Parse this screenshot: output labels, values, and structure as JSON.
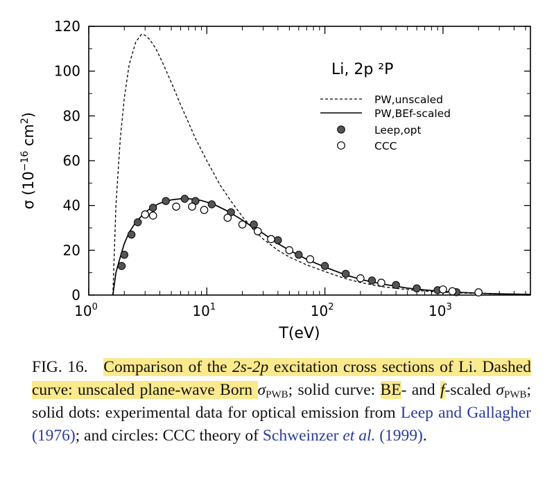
{
  "chart_data": {
    "type": "scatter",
    "xscale": "log",
    "xlim": [
      1,
      5500
    ],
    "ylim": [
      0,
      120
    ],
    "xlabel": "T(eV)",
    "ylabel": "σ (10⁻¹⁶ cm²)",
    "ylabel_base": "σ (10",
    "ylabel_exp1": "−16",
    "ylabel_mid": " cm",
    "ylabel_exp2": "2",
    "ylabel_end": ")",
    "panel_label": "Li, 2p ²P",
    "xticks": [
      {
        "value": 1,
        "base": "10",
        "exp": "0"
      },
      {
        "value": 10,
        "base": "10",
        "exp": "1"
      },
      {
        "value": 100,
        "base": "10",
        "exp": "2"
      },
      {
        "value": 1000,
        "base": "10",
        "exp": "3"
      }
    ],
    "yticks": [
      0,
      20,
      40,
      60,
      80,
      100,
      120
    ],
    "legend_placement": "upper-right",
    "series": [
      {
        "name": "PW,unscaled",
        "style": "dashed-line",
        "x": [
          1.6,
          1.7,
          1.85,
          2.0,
          2.2,
          2.5,
          2.8,
          3.0,
          3.3,
          3.7,
          4.2,
          5,
          6,
          7,
          8,
          10,
          13,
          16,
          20,
          25,
          30,
          40,
          50,
          70,
          100,
          150,
          200,
          300,
          500,
          700,
          1000,
          1500,
          2000,
          3000,
          5500
        ],
        "y": [
          0,
          40,
          70,
          88,
          103,
          113,
          116.5,
          116,
          114,
          110,
          104,
          95,
          85,
          77,
          70,
          60,
          49,
          42,
          35,
          29,
          25,
          20,
          17,
          13.5,
          10.5,
          7.3,
          5.6,
          3.8,
          2.4,
          1.8,
          1.3,
          0.9,
          0.7,
          0.45,
          0.3
        ]
      },
      {
        "name": "PW,BEf-scaled",
        "style": "solid-line",
        "x": [
          1.6,
          1.7,
          1.85,
          2.0,
          2.2,
          2.5,
          3.0,
          3.5,
          4.0,
          5,
          6,
          7,
          8,
          9,
          10,
          12,
          15,
          20,
          25,
          30,
          40,
          50,
          70,
          100,
          150,
          200,
          300,
          500,
          700,
          1000,
          1500,
          2000,
          3000,
          5500
        ],
        "y": [
          0,
          10,
          17,
          23,
          28,
          32.5,
          37,
          39.5,
          41,
          42.5,
          43,
          43,
          42.7,
          42.2,
          41.5,
          40,
          37.5,
          33.5,
          30,
          27.5,
          23,
          20,
          16,
          12.5,
          9,
          7,
          5,
          3.1,
          2.3,
          1.6,
          1.1,
          0.85,
          0.55,
          0.3
        ]
      },
      {
        "name": "Leep,opt",
        "style": "filled-circle",
        "x": [
          1.9,
          2.0,
          2.3,
          2.6,
          3.0,
          3.5,
          4.5,
          6.5,
          8.0,
          11,
          16,
          25,
          40,
          60,
          100,
          150,
          250,
          400,
          600,
          900,
          1300
        ],
        "y": [
          13,
          18,
          27,
          32.5,
          36,
          39,
          42,
          43,
          42,
          40.5,
          37,
          31.5,
          24.5,
          18,
          13,
          9.5,
          6.5,
          4.5,
          3,
          2.2,
          1.3
        ]
      },
      {
        "name": "CCC",
        "style": "open-circle",
        "x": [
          3.0,
          3.5,
          5.5,
          7.5,
          9.5,
          15,
          20,
          27,
          35,
          50,
          75,
          200,
          300,
          1000,
          1200,
          2000
        ],
        "y": [
          36,
          35.5,
          39.5,
          39.5,
          38,
          34.5,
          31.5,
          28.5,
          25,
          20,
          16,
          7.5,
          5.5,
          2.5,
          1.7,
          1.2
        ]
      }
    ]
  },
  "caption": {
    "fig_label": "FIG. 16.",
    "p1": "Comparison of the ",
    "p2": "2s",
    "p3": "-",
    "p4": "2p",
    "p5": " excitation cross sections of",
    "p6": "Li. Dashed curve: unscaled plane-wave Born ",
    "p7": "σ",
    "p8": "PWB",
    "p9": "; solid curve:",
    "p10": "BE",
    "p11": "- and ",
    "p12": "f",
    "p13": "-scaled ",
    "p14": "σ",
    "p15": "PWB",
    "p16": "; solid dots: experimental data for optical emission from ",
    "p17": "Leep and Gallagher (1976)",
    "p18": "; and circles: CCC theory of ",
    "p19": "Schweinzer ",
    "p20": "et al.",
    "p21": " (1999)",
    "p22": "."
  }
}
